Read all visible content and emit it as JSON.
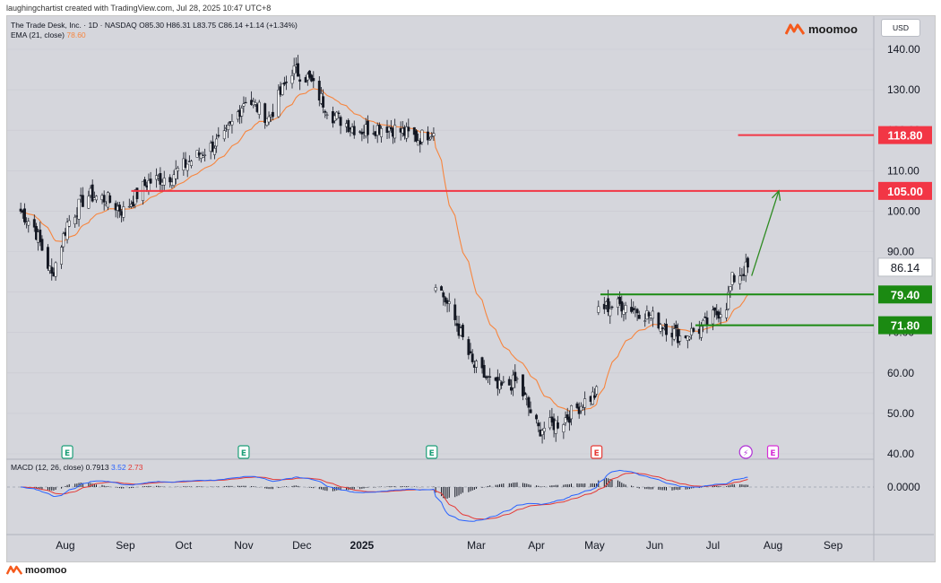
{
  "credit": "laughingchartist created with TradingView.com, Jul 28, 2025 10:47 UTC+8",
  "brand": {
    "name": "moomoo",
    "icon": "moomoo-logo-icon"
  },
  "currency": "USD",
  "legend": {
    "symbol_line": "The Trade Desk, Inc. · 1D · NASDAQ  O85.30  H86.31  L83.75  C86.14  +1.14 (+1.34%)",
    "ema_label": "EMA (21, close)",
    "ema_value": "78.60"
  },
  "macd_legend": {
    "label": "MACD (12, 26, close)",
    "hist": "0.7913",
    "macd": "3.52",
    "signal": "2.73"
  },
  "colors": {
    "up": "#ffffff",
    "down": "#131722",
    "ema": "#f7853e",
    "resistance": "#f23645",
    "support": "#1b8a12",
    "arrow": "#2e8b22",
    "macd": "#2962ff",
    "signal": "#e53935"
  },
  "chart_data": {
    "type": "candlestick",
    "title": "The Trade Desk, Inc. · 1D · NASDAQ",
    "ylim": [
      40,
      143
    ],
    "y_ticks": [
      "140.00",
      "130.00",
      "120.00",
      "110.00",
      "100.00",
      "90.00",
      "80.00",
      "70.00",
      "60.00",
      "50.00",
      "40.00"
    ],
    "x_ticks": [
      "Aug",
      "Sep",
      "Oct",
      "Nov",
      "Dec",
      "2025",
      "Mar",
      "Apr",
      "May",
      "Jun",
      "Jul",
      "Aug",
      "Sep"
    ],
    "price_path": [
      [
        "2024-07-15",
        100
      ],
      [
        "2024-07-22",
        96
      ],
      [
        "2024-07-31",
        84
      ],
      [
        "2024-08-08",
        97
      ],
      [
        "2024-08-18",
        104
      ],
      [
        "2024-08-28",
        103
      ],
      [
        "2024-09-06",
        100
      ],
      [
        "2024-09-18",
        107
      ],
      [
        "2024-10-01",
        109
      ],
      [
        "2024-10-15",
        114
      ],
      [
        "2024-10-28",
        118
      ],
      [
        "2024-11-08",
        128
      ],
      [
        "2024-11-20",
        123
      ],
      [
        "2024-12-02",
        135
      ],
      [
        "2024-12-10",
        133
      ],
      [
        "2024-12-22",
        124
      ],
      [
        "2025-01-05",
        120
      ],
      [
        "2025-01-20",
        121
      ],
      [
        "2025-02-05",
        118
      ],
      [
        "2025-02-13",
        120
      ],
      [
        "2025-02-14",
        83
      ],
      [
        "2025-02-25",
        72
      ],
      [
        "2025-03-05",
        62
      ],
      [
        "2025-03-18",
        56
      ],
      [
        "2025-03-28",
        58
      ],
      [
        "2025-04-08",
        46
      ],
      [
        "2025-04-20",
        48
      ],
      [
        "2025-05-02",
        53
      ],
      [
        "2025-05-08",
        55
      ],
      [
        "2025-05-09",
        76
      ],
      [
        "2025-05-22",
        77
      ],
      [
        "2025-06-05",
        74
      ],
      [
        "2025-06-20",
        69
      ],
      [
        "2025-07-01",
        71
      ],
      [
        "2025-07-14",
        77
      ],
      [
        "2025-07-17",
        83
      ],
      [
        "2025-07-25",
        86.14
      ]
    ],
    "ema_label": "EMA (21, close)",
    "levels": [
      {
        "label": "118.80",
        "value": 118.8,
        "color": "#f23645",
        "start": "2025-07-20"
      },
      {
        "label": "105.00",
        "value": 105.0,
        "color": "#f23645",
        "start": "2024-09-10"
      },
      {
        "label": "79.40",
        "value": 79.4,
        "color": "#1b8a12",
        "start": "2025-05-10"
      },
      {
        "label": "71.80",
        "value": 71.8,
        "color": "#1b8a12",
        "start": "2025-06-28"
      }
    ],
    "last_price": "86.14",
    "projection": {
      "from": [
        "2025-07-27",
        84
      ],
      "to": [
        "2025-08-10",
        105
      ]
    },
    "event_markers": [
      {
        "date": "2024-08-08",
        "label": "E",
        "color": "#1b9e77"
      },
      {
        "date": "2024-11-07",
        "label": "E",
        "color": "#1b9e77"
      },
      {
        "date": "2025-02-12",
        "label": "E",
        "color": "#1b9e77"
      },
      {
        "date": "2025-05-08",
        "label": "E",
        "color": "#e53935"
      },
      {
        "date": "2025-07-24",
        "label": "⚡",
        "color": "#b02fd6"
      },
      {
        "date": "2025-08-07",
        "label": "E",
        "color": "#d62fd6"
      }
    ],
    "macd_zero_label": "0.0000"
  }
}
